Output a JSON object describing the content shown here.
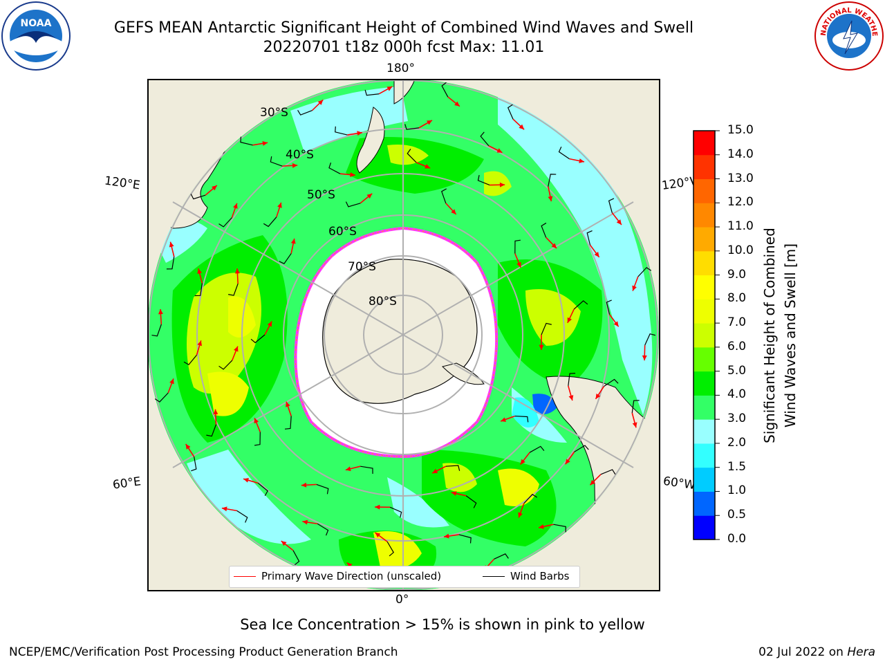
{
  "title": {
    "line1": "GEFS MEAN Antarctic Significant Height of Combined Wind Waves and Swell",
    "line2": "20220701 t18z 000h fcst    Max: 11.01"
  },
  "logos": {
    "left": {
      "name": "NOAA",
      "text": "NOAA"
    },
    "right": {
      "name": "National Weather Service"
    }
  },
  "map": {
    "projection": "south-polar-stereographic",
    "longitude_labels": {
      "top": "180°",
      "upper_left": "120°E",
      "upper_right": "120°W",
      "lower_left": "60°E",
      "lower_right": "60°W",
      "bottom": "0°"
    },
    "latitude_labels": [
      "30°S",
      "40°S",
      "50°S",
      "60°S",
      "70°S",
      "80°S"
    ],
    "colors": {
      "land": "#efecdc",
      "ice_edge": "#ff33ff",
      "wave_arrows": "#ff0000",
      "wind_barbs": "#000000",
      "graticule": "#b0b0b0"
    }
  },
  "legend": {
    "items": [
      {
        "label": "Primary Wave Direction (unscaled)",
        "color": "#ff0000"
      },
      {
        "label": "Wind Barbs",
        "color": "#000000"
      }
    ]
  },
  "colorbar": {
    "label_line1": "Significant Height of Combined",
    "label_line2": "Wind Waves and Swell [m]",
    "ticks": [
      "0.0",
      "0.5",
      "1.0",
      "1.5",
      "2.0",
      "3.0",
      "4.0",
      "5.0",
      "6.0",
      "7.0",
      "8.0",
      "9.0",
      "10.0",
      "11.0",
      "12.0",
      "13.0",
      "14.0",
      "15.0"
    ],
    "colors": [
      "#0000ff",
      "#0066ff",
      "#00ccff",
      "#33ffff",
      "#99ffff",
      "#33ff66",
      "#00ee00",
      "#66ff00",
      "#ccff00",
      "#eeff00",
      "#ffff00",
      "#ffdd00",
      "#ffaa00",
      "#ff8800",
      "#ff6600",
      "#ff3300",
      "#ff0000"
    ]
  },
  "caption": "Sea Ice Concentration > 15% is shown in pink to yellow",
  "footer": {
    "credit": "NCEP/EMC/Verification Post Processing Product Generation Branch",
    "date": "02 Jul 2022 on ",
    "machine": "Hera"
  }
}
